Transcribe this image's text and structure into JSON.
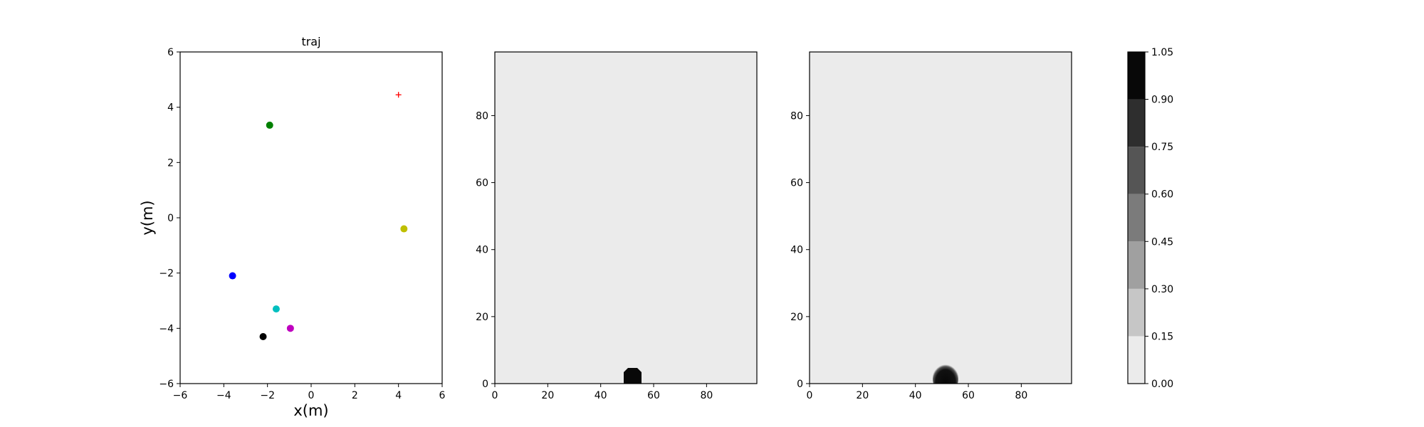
{
  "chart_data": [
    {
      "type": "scatter",
      "title": "traj",
      "xlabel": "x(m)",
      "ylabel": "y(m)",
      "xlim": [
        -6,
        6
      ],
      "ylim": [
        -6,
        6
      ],
      "xticks": [
        -6,
        -4,
        -2,
        0,
        2,
        4,
        6
      ],
      "yticks": [
        -6,
        -4,
        -2,
        0,
        2,
        4,
        6
      ],
      "grid": false,
      "points": [
        {
          "x": -1.9,
          "y": 3.35,
          "color": "#008000",
          "marker": "circle"
        },
        {
          "x": 4.25,
          "y": -0.4,
          "color": "#bfbf00",
          "marker": "circle"
        },
        {
          "x": -3.6,
          "y": -2.1,
          "color": "#0000ff",
          "marker": "circle"
        },
        {
          "x": -1.6,
          "y": -3.3,
          "color": "#00bfbf",
          "marker": "circle"
        },
        {
          "x": -0.95,
          "y": -4.0,
          "color": "#bf00bf",
          "marker": "circle"
        },
        {
          "x": -2.2,
          "y": -4.3,
          "color": "#000000",
          "marker": "circle"
        },
        {
          "x": 4.0,
          "y": 4.45,
          "color": "#ff0000",
          "marker": "plus"
        }
      ]
    },
    {
      "type": "heatmap",
      "xlim": [
        0,
        99
      ],
      "ylim": [
        0,
        99
      ],
      "xticks": [
        0,
        20,
        40,
        60,
        80
      ],
      "yticks": [
        0,
        20,
        40,
        60,
        80
      ],
      "background_value": 0.0,
      "blob": {
        "center_x": 52,
        "center_y": 2,
        "value": 1.0,
        "edge": "sharp"
      }
    },
    {
      "type": "heatmap",
      "xlim": [
        0,
        99
      ],
      "ylim": [
        0,
        99
      ],
      "xticks": [
        0,
        20,
        40,
        60,
        80
      ],
      "yticks": [
        0,
        20,
        40,
        60,
        80
      ],
      "background_value": 0.0,
      "blob": {
        "center_x": 51,
        "center_y": 2,
        "value": 1.0,
        "edge": "soft"
      }
    }
  ],
  "colorbar": {
    "levels": [
      0.0,
      0.15,
      0.3,
      0.45,
      0.6,
      0.75,
      0.9,
      1.05
    ],
    "tick_labels": [
      "0.00",
      "0.15",
      "0.30",
      "0.45",
      "0.60",
      "0.75",
      "0.90",
      "1.05"
    ],
    "colors": [
      "#ebebeb",
      "#c6c6c6",
      "#a0a0a0",
      "#7b7b7b",
      "#555555",
      "#2e2e2e",
      "#080808"
    ]
  }
}
